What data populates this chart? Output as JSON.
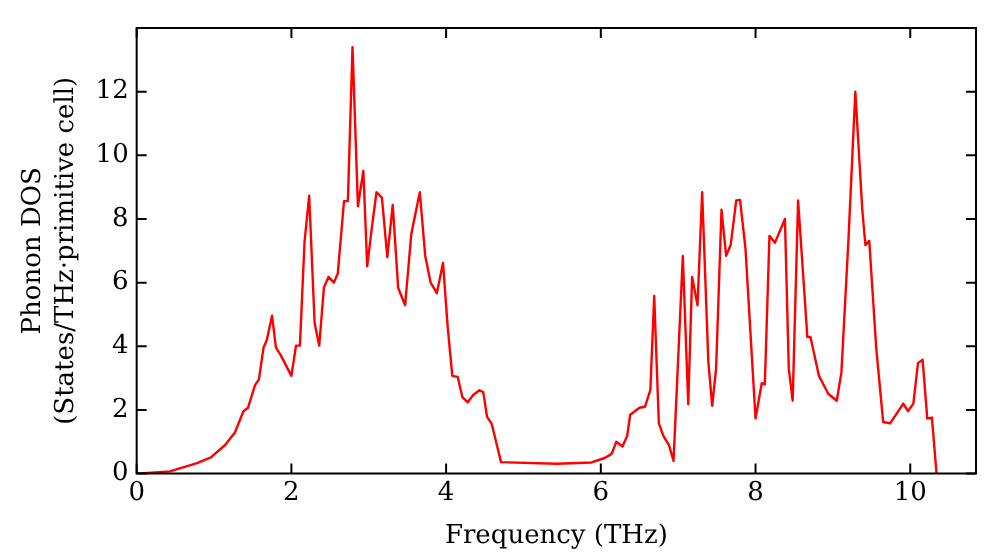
{
  "chart_data": {
    "type": "line",
    "xlabel": "Frequency (THz)",
    "ylabel": "Phonon DOS\n(States/THz·primitive cell)",
    "xlim": [
      0,
      10.85
    ],
    "xticks": [
      0,
      2,
      4,
      6,
      8,
      10
    ],
    "ylim": [
      0,
      14
    ],
    "yticks": [
      0,
      2,
      4,
      6,
      8,
      10,
      12
    ],
    "grid": false,
    "legend": false,
    "marker": "none",
    "line_style": "solid",
    "x": [
      0,
      0.43,
      0.78,
      0.96,
      1.14,
      1.27,
      1.38,
      1.44,
      1.53,
      1.58,
      1.64,
      1.68,
      1.75,
      1.8,
      1.86,
      2.0,
      2.06,
      2.11,
      2.17,
      2.23,
      2.3,
      2.36,
      2.42,
      2.48,
      2.55,
      2.6,
      2.68,
      2.73,
      2.79,
      2.86,
      2.93,
      2.98,
      3.04,
      3.1,
      3.17,
      3.24,
      3.31,
      3.38,
      3.47,
      3.55,
      3.66,
      3.73,
      3.8,
      3.88,
      3.96,
      4.02,
      4.08,
      4.15,
      4.21,
      4.28,
      4.35,
      4.43,
      4.48,
      4.53,
      4.59,
      4.71,
      5.43,
      5.88,
      6.05,
      6.14,
      6.2,
      6.28,
      6.34,
      6.38,
      6.5,
      6.57,
      6.64,
      6.69,
      6.75,
      6.81,
      6.88,
      6.94,
      7.06,
      7.13,
      7.18,
      7.25,
      7.31,
      7.39,
      7.44,
      7.49,
      7.56,
      7.62,
      7.68,
      7.75,
      7.8,
      7.87,
      8.0,
      8.08,
      8.12,
      8.18,
      8.25,
      8.38,
      8.43,
      8.48,
      8.55,
      8.67,
      8.71,
      8.82,
      8.94,
      9.05,
      9.11,
      9.2,
      9.29,
      9.38,
      9.42,
      9.47,
      9.56,
      9.65,
      9.74,
      9.82,
      9.91,
      9.97,
      10.04,
      10.1,
      10.16,
      10.22,
      10.28,
      10.34
    ],
    "series": [
      {
        "color": "#ff0000",
        "values": [
          0,
          0.07,
          0.33,
          0.51,
          0.89,
          1.29,
          1.96,
          2.07,
          2.78,
          2.96,
          3.96,
          4.18,
          4.96,
          3.96,
          3.73,
          3.07,
          4.02,
          4.02,
          7.29,
          8.73,
          4.73,
          4.02,
          5.84,
          6.18,
          6.0,
          6.29,
          8.56,
          8.56,
          13.4,
          8.4,
          9.51,
          6.51,
          7.73,
          8.84,
          8.67,
          6.8,
          8.44,
          5.84,
          5.29,
          7.53,
          8.84,
          6.84,
          6.0,
          5.67,
          6.62,
          4.62,
          3.07,
          3.04,
          2.4,
          2.24,
          2.47,
          2.62,
          2.56,
          1.78,
          1.56,
          0.36,
          0.31,
          0.35,
          0.49,
          0.62,
          1.0,
          0.85,
          1.18,
          1.85,
          2.07,
          2.1,
          2.62,
          5.58,
          1.58,
          1.18,
          0.9,
          0.4,
          6.84,
          2.18,
          6.18,
          5.29,
          8.84,
          3.51,
          2.13,
          3.29,
          8.29,
          6.84,
          7.2,
          8.58,
          8.6,
          7.07,
          1.73,
          2.84,
          2.8,
          7.47,
          7.25,
          8.0,
          3.29,
          2.29,
          8.58,
          4.29,
          4.29,
          3.07,
          2.51,
          2.29,
          3.18,
          7.29,
          12.0,
          8.29,
          7.18,
          7.31,
          3.96,
          1.62,
          1.58,
          1.87,
          2.2,
          1.96,
          2.2,
          3.47,
          3.58,
          1.73,
          1.76,
          0
        ]
      }
    ]
  }
}
